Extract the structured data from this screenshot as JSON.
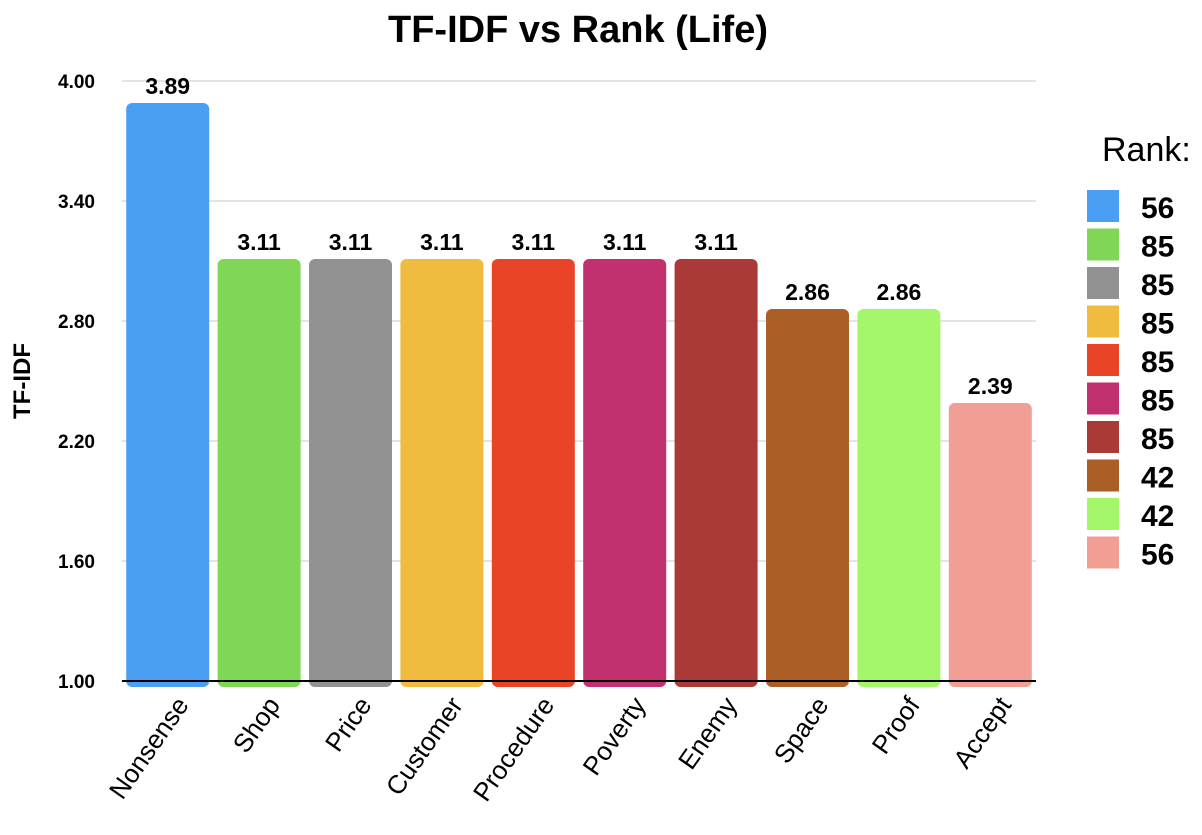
{
  "chart_data": {
    "type": "bar",
    "title": "TF-IDF vs Rank (Life)",
    "xlabel": "",
    "ylabel": "TF-IDF",
    "ylim": [
      1.0,
      4.0
    ],
    "yticks": [
      "1.00",
      "1.60",
      "2.20",
      "2.80",
      "3.40",
      "4.00"
    ],
    "grid": true,
    "legend_title": "Rank:",
    "legend_position": "right",
    "categories": [
      "Nonsense",
      "Shop",
      "Price",
      "Customer",
      "Procedure",
      "Poverty",
      "Enemy",
      "Space",
      "Proof",
      "Accept"
    ],
    "values": [
      3.89,
      3.11,
      3.11,
      3.11,
      3.11,
      3.11,
      3.11,
      2.86,
      2.86,
      2.39
    ],
    "value_labels": [
      "3.89",
      "3.11",
      "3.11",
      "3.11",
      "3.11",
      "3.11",
      "3.11",
      "2.86",
      "2.86",
      "2.39"
    ],
    "ranks": [
      "56",
      "85",
      "85",
      "85",
      "85",
      "85",
      "85",
      "42",
      "42",
      "56"
    ],
    "colors": [
      "#4a9ff5",
      "#80d655",
      "#929292",
      "#efbc40",
      "#e94328",
      "#c1306f",
      "#aa3a38",
      "#ab5e25",
      "#a4f76a",
      "#f19e94"
    ]
  }
}
